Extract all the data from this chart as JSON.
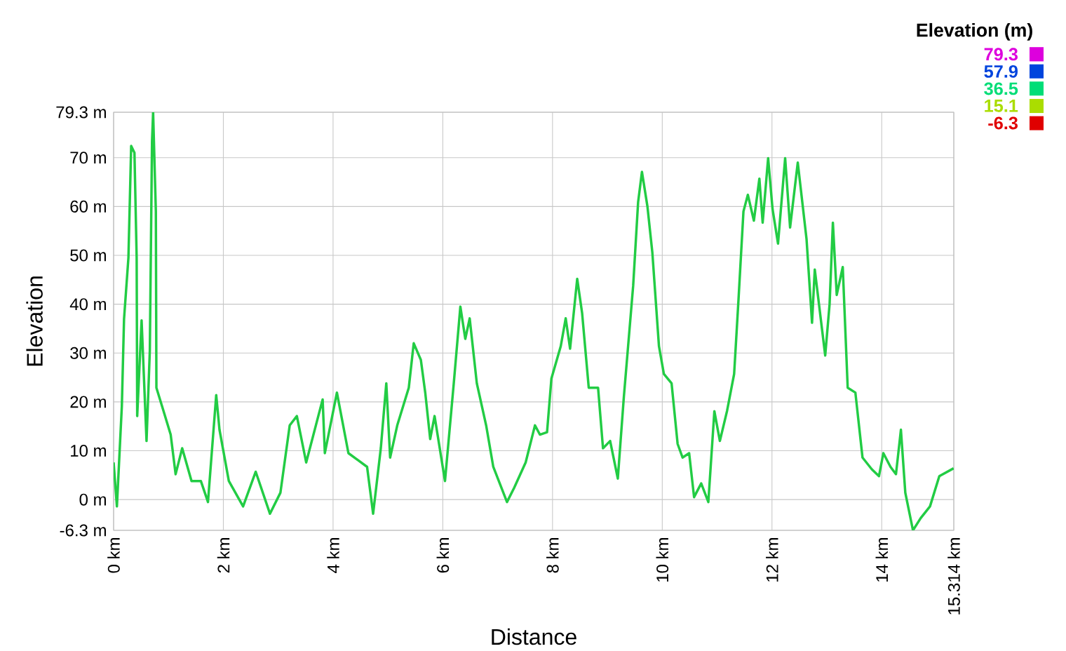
{
  "chart_data": {
    "type": "line",
    "xlabel": "Distance",
    "ylabel": "Elevation",
    "clabel": "Elevation (m)",
    "clim": [
      -6.3,
      79.3
    ],
    "cticks": [
      79.3,
      57.9,
      36.5,
      15.1,
      -6.3
    ],
    "x": [
      0,
      0.06,
      0.15,
      0.19,
      0.27,
      0.32,
      0.38,
      0.42,
      0.43,
      0.51,
      0.6,
      0.66,
      0.7,
      0.72,
      0.77,
      0.78,
      0.91,
      1.04,
      1.13,
      1.25,
      1.42,
      1.59,
      1.72,
      1.87,
      1.93,
      2.1,
      2.36,
      2.59,
      2.85,
      3.04,
      3.21,
      3.34,
      3.51,
      3.81,
      3.85,
      4.07,
      4.28,
      4.62,
      4.73,
      4.87,
      4.97,
      5.04,
      5.17,
      5.38,
      5.47,
      5.6,
      5.68,
      5.77,
      5.85,
      6.04,
      6.2,
      6.32,
      6.41,
      6.49,
      6.62,
      6.79,
      6.92,
      7.17,
      7.3,
      7.51,
      7.68,
      7.77,
      7.9,
      7.98,
      8.15,
      8.24,
      8.32,
      8.45,
      8.54,
      8.66,
      8.83,
      8.92,
      9.05,
      9.19,
      9.3,
      9.47,
      9.56,
      9.63,
      9.73,
      9.82,
      9.94,
      10.03,
      10.17,
      10.28,
      10.37,
      10.49,
      10.58,
      10.71,
      10.84,
      10.95,
      11.05,
      11.18,
      11.31,
      11.39,
      11.48,
      11.56,
      11.67,
      11.77,
      11.83,
      11.93,
      12.01,
      12.11,
      12.24,
      12.33,
      12.47,
      12.63,
      12.73,
      12.78,
      12.97,
      13.05,
      13.11,
      13.18,
      13.29,
      13.38,
      13.52,
      13.65,
      13.82,
      13.95,
      14.03,
      14.16,
      14.26,
      14.35,
      14.43,
      14.57,
      14.71,
      14.88,
      15.05,
      15.31
    ],
    "values": [
      7.6,
      -1.4,
      19.1,
      37,
      49.5,
      72.4,
      71,
      49.5,
      17.1,
      36.7,
      12,
      30.5,
      73.3,
      79.3,
      59,
      22.9,
      18.1,
      13.3,
      5.2,
      10.5,
      3.8,
      3.8,
      -0.5,
      21.4,
      14.3,
      3.8,
      -1.4,
      5.7,
      -2.9,
      1.4,
      15.2,
      17.1,
      7.6,
      20.5,
      9.5,
      21.9,
      9.5,
      6.7,
      -2.9,
      10.5,
      23.8,
      8.6,
      15.2,
      22.9,
      32,
      28.6,
      21.9,
      12.4,
      17.1,
      3.8,
      23.8,
      39.5,
      32.9,
      37.1,
      23.8,
      15.2,
      6.7,
      -0.5,
      2.4,
      7.6,
      15.2,
      13.3,
      13.8,
      24.8,
      31.4,
      37.1,
      30.9,
      45.2,
      38.1,
      22.9,
      22.9,
      10.5,
      12,
      4.3,
      21,
      43.8,
      60.9,
      67.1,
      60,
      50.5,
      31.4,
      25.7,
      23.8,
      11.4,
      8.6,
      9.5,
      0.5,
      3.3,
      -0.5,
      18.1,
      12,
      18.1,
      25.7,
      41,
      59,
      62.4,
      57.1,
      65.7,
      56.7,
      69.9,
      59.5,
      52.4,
      69.9,
      55.7,
      69,
      53.3,
      36.2,
      47.1,
      29.5,
      40,
      56.7,
      41.9,
      47.6,
      22.9,
      21.9,
      8.6,
      6.2,
      4.8,
      9.5,
      6.7,
      5.2,
      14.3,
      1.4,
      -6.3,
      -3.8,
      -1.4,
      4.8,
      6.4
    ],
    "xlim": [
      0,
      15.314
    ],
    "ylim": [
      -6.3,
      79.3
    ],
    "xticks": [
      {
        "value": 0,
        "label": "0 km"
      },
      {
        "value": 2,
        "label": "2 km"
      },
      {
        "value": 4,
        "label": "4 km"
      },
      {
        "value": 6,
        "label": "6 km"
      },
      {
        "value": 8,
        "label": "8 km"
      },
      {
        "value": 10,
        "label": "10 km"
      },
      {
        "value": 12,
        "label": "12 km"
      },
      {
        "value": 14,
        "label": "14 km"
      },
      {
        "value": 15.314,
        "label": "15.314 km"
      }
    ],
    "yticks": [
      {
        "value": -6.3,
        "label": "-6.3 m"
      },
      {
        "value": 0,
        "label": "0 m"
      },
      {
        "value": 10,
        "label": "10 m"
      },
      {
        "value": 20,
        "label": "20 m"
      },
      {
        "value": 30,
        "label": "30 m"
      },
      {
        "value": 40,
        "label": "40 m"
      },
      {
        "value": 50,
        "label": "50 m"
      },
      {
        "value": 60,
        "label": "60 m"
      },
      {
        "value": 70,
        "label": "70 m"
      },
      {
        "value": 79.3,
        "label": "79.3 m"
      }
    ],
    "color": "#22cc44",
    "grid": true
  }
}
